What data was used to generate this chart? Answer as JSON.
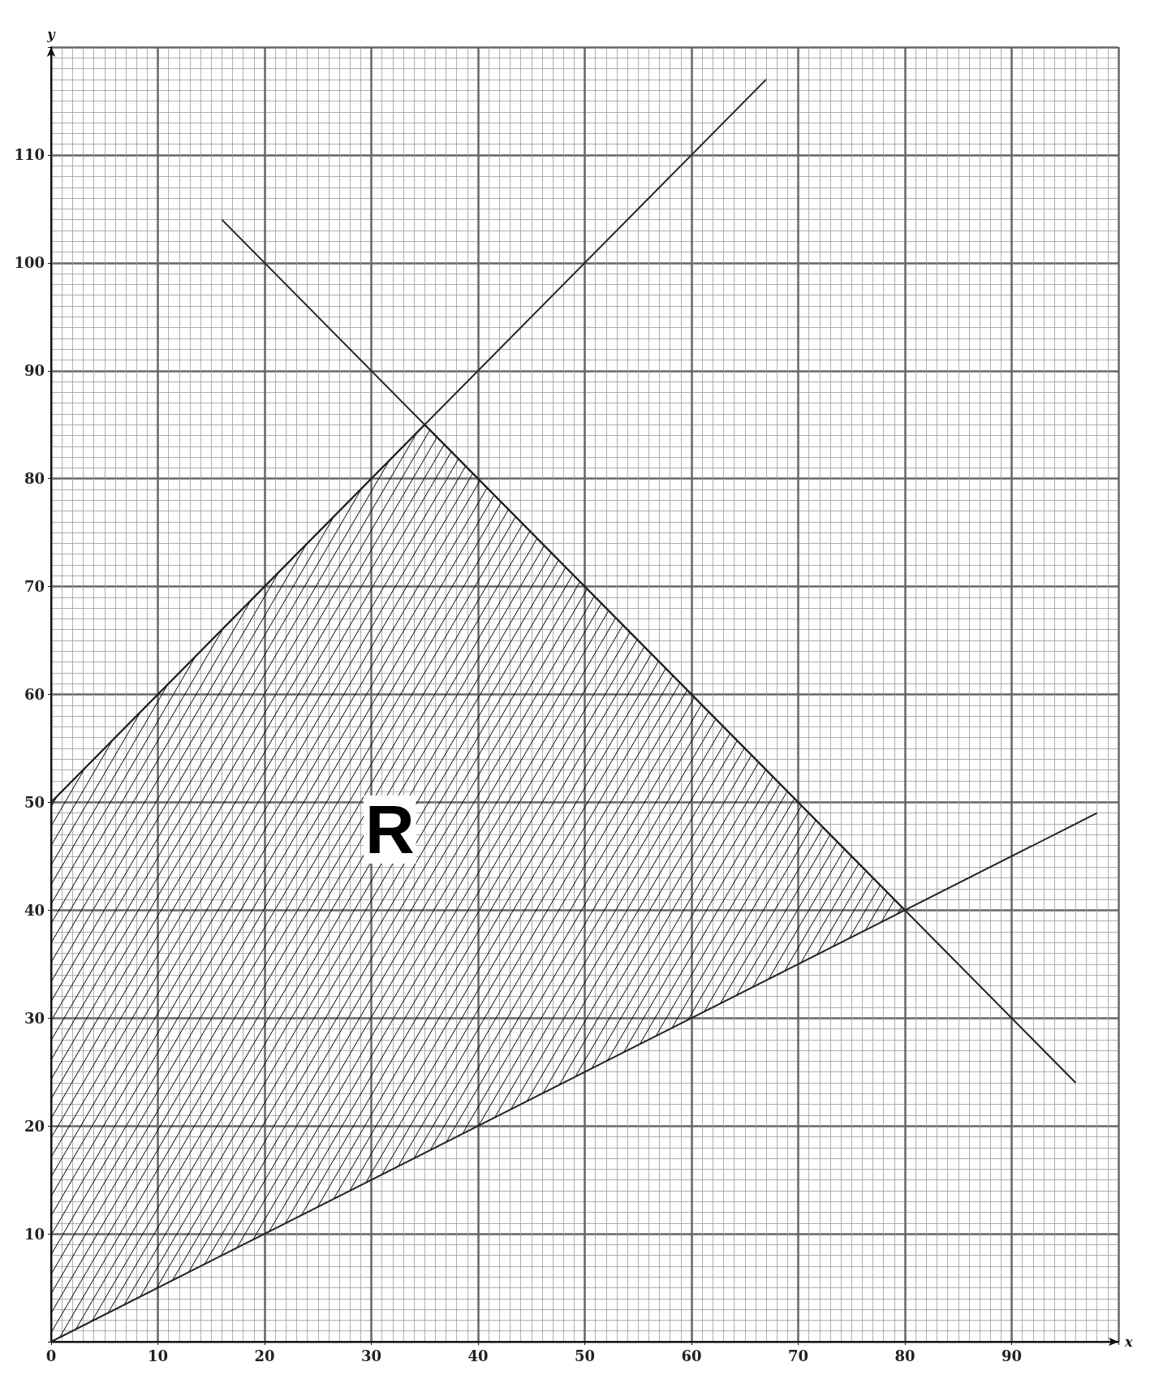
{
  "chart_data": {
    "type": "line",
    "xlabel": "x",
    "ylabel": "y",
    "xlim": [
      0,
      100
    ],
    "ylim": [
      0,
      120
    ],
    "xticks": [
      0,
      10,
      20,
      30,
      40,
      50,
      60,
      70,
      80,
      90,
      {
        "value": 100,
        "label": null
      }
    ],
    "yticks": [
      {
        "value": 0,
        "label": null
      },
      10,
      20,
      30,
      40,
      50,
      60,
      70,
      80,
      90,
      100,
      110,
      {
        "value": 120,
        "label": null
      }
    ],
    "grid": true,
    "marker": "none",
    "line_style": "solid",
    "series": [
      {
        "color": "#000000",
        "x": [
          0,
          35,
          80
        ],
        "values": [
          50,
          85,
          40
        ],
        "lower": [
          0,
          17.5,
          40
        ],
        "upper": [
          50,
          85,
          40
        ]
      },
      {
        "color": "#222222",
        "x": [
          0,
          67
        ],
        "values": [
          50,
          117
        ]
      },
      {
        "color": "#222222",
        "x": [
          16,
          96
        ],
        "values": [
          104,
          24
        ]
      },
      {
        "color": "#222222",
        "x": [
          0,
          98
        ],
        "values": [
          0,
          49
        ]
      }
    ],
    "annotations": [
      "R"
    ]
  }
}
